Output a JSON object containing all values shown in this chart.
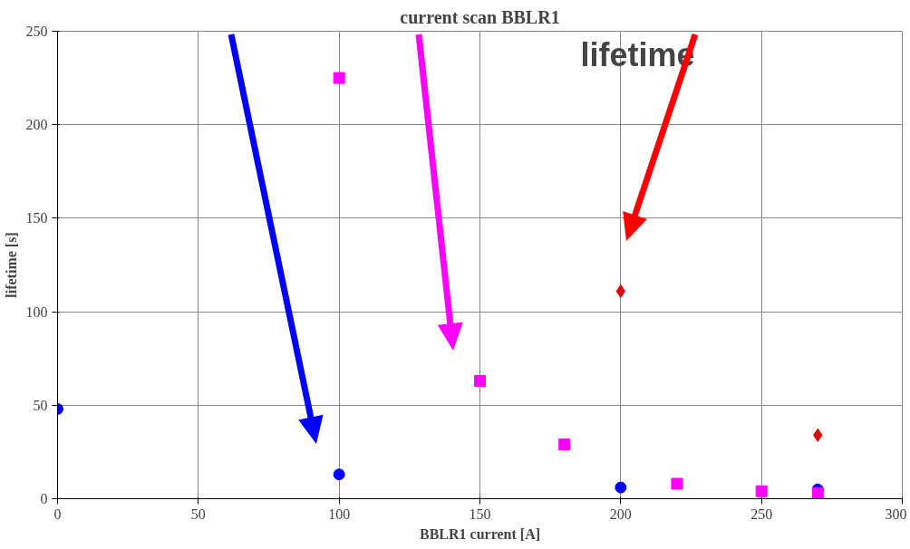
{
  "chart_data": {
    "type": "scatter",
    "title": "current scan BBLR1",
    "xlabel": "BBLR1 current [A]",
    "ylabel": "lifetime [s]",
    "xlim": [
      0,
      300
    ],
    "xticks": [
      0,
      50,
      100,
      150,
      200,
      250,
      300
    ],
    "ylim": [
      0,
      250
    ],
    "yticks": [
      0,
      50,
      100,
      150,
      200,
      250
    ],
    "grid": true,
    "annotations": [
      "lifetime"
    ],
    "series": [
      {
        "color": "#0000ff",
        "marker": "circle",
        "x": [
          0,
          100,
          200,
          270
        ],
        "values": [
          48,
          13,
          6,
          5
        ]
      },
      {
        "color": "#ff00ff",
        "marker": "square",
        "x": [
          100,
          150,
          180,
          220,
          250,
          270
        ],
        "values": [
          225,
          63,
          29,
          8,
          4,
          3
        ]
      },
      {
        "color": "#e00000",
        "marker": "diamond",
        "x": [
          200,
          270
        ],
        "values": [
          111,
          34
        ]
      }
    ]
  }
}
